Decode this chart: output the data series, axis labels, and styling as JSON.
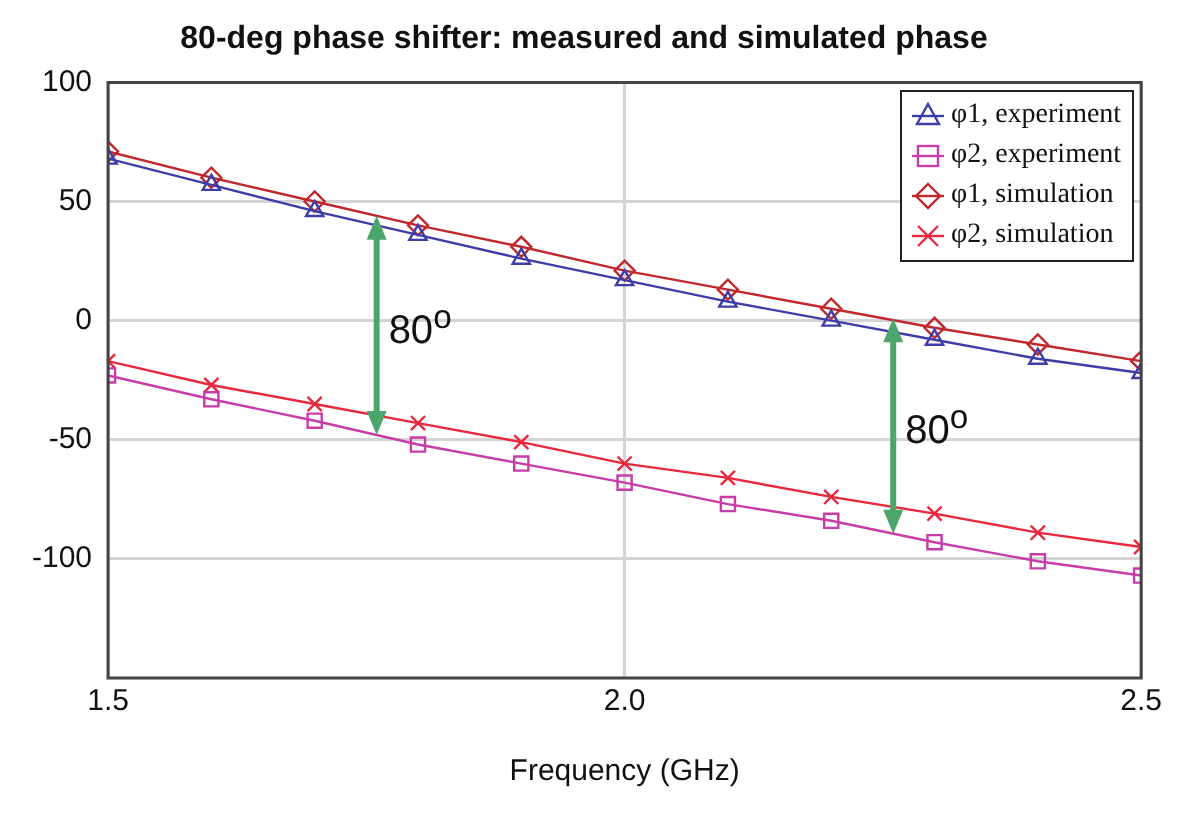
{
  "chart_data": {
    "type": "line",
    "title": "80-deg phase shifter: measured and simulated phase",
    "xlabel": "Frequency (GHz)",
    "x": [
      1.5,
      1.6,
      1.7,
      1.8,
      1.9,
      2.0,
      2.1,
      2.2,
      2.3,
      2.4,
      2.5
    ],
    "series": [
      {
        "name": "φ1, experiment",
        "color": "#3d3da8",
        "marker": "triangle",
        "values": [
          68,
          57,
          46,
          36,
          26,
          17,
          8,
          0,
          -8,
          -16,
          -22
        ]
      },
      {
        "name": "φ2, experiment",
        "color": "#c83ca8",
        "marker": "square",
        "values": [
          -23,
          -33,
          -42,
          -52,
          -60,
          -68,
          -77,
          -84,
          -93,
          -101,
          -107
        ]
      },
      {
        "name": "φ1, simulation",
        "color": "#c0282c",
        "marker": "diamond",
        "values": [
          71,
          60,
          50,
          40,
          31,
          21,
          13,
          5,
          -3,
          -10,
          -17
        ]
      },
      {
        "name": "φ2, simulation",
        "color": "#e8283c",
        "marker": "cross",
        "values": [
          -17,
          -27,
          -35,
          -43,
          -51,
          -60,
          -66,
          -74,
          -81,
          -89,
          -95
        ]
      }
    ],
    "xlim": [
      1.5,
      2.5
    ],
    "xticks": [
      1.5,
      {
        "value": 2,
        "label": "2.0"
      },
      2.5
    ],
    "ylim": [
      -150,
      100
    ],
    "yticks": [
      -100,
      -50,
      0,
      50,
      100
    ],
    "grid": true,
    "legend": "top right",
    "annotations": [
      {
        "text": "80$^{o}$",
        "x": 1.76,
        "y": 44
      },
      {
        "text": "80$^{o}$",
        "x": 2.26,
        "y": 1
      }
    ]
  }
}
